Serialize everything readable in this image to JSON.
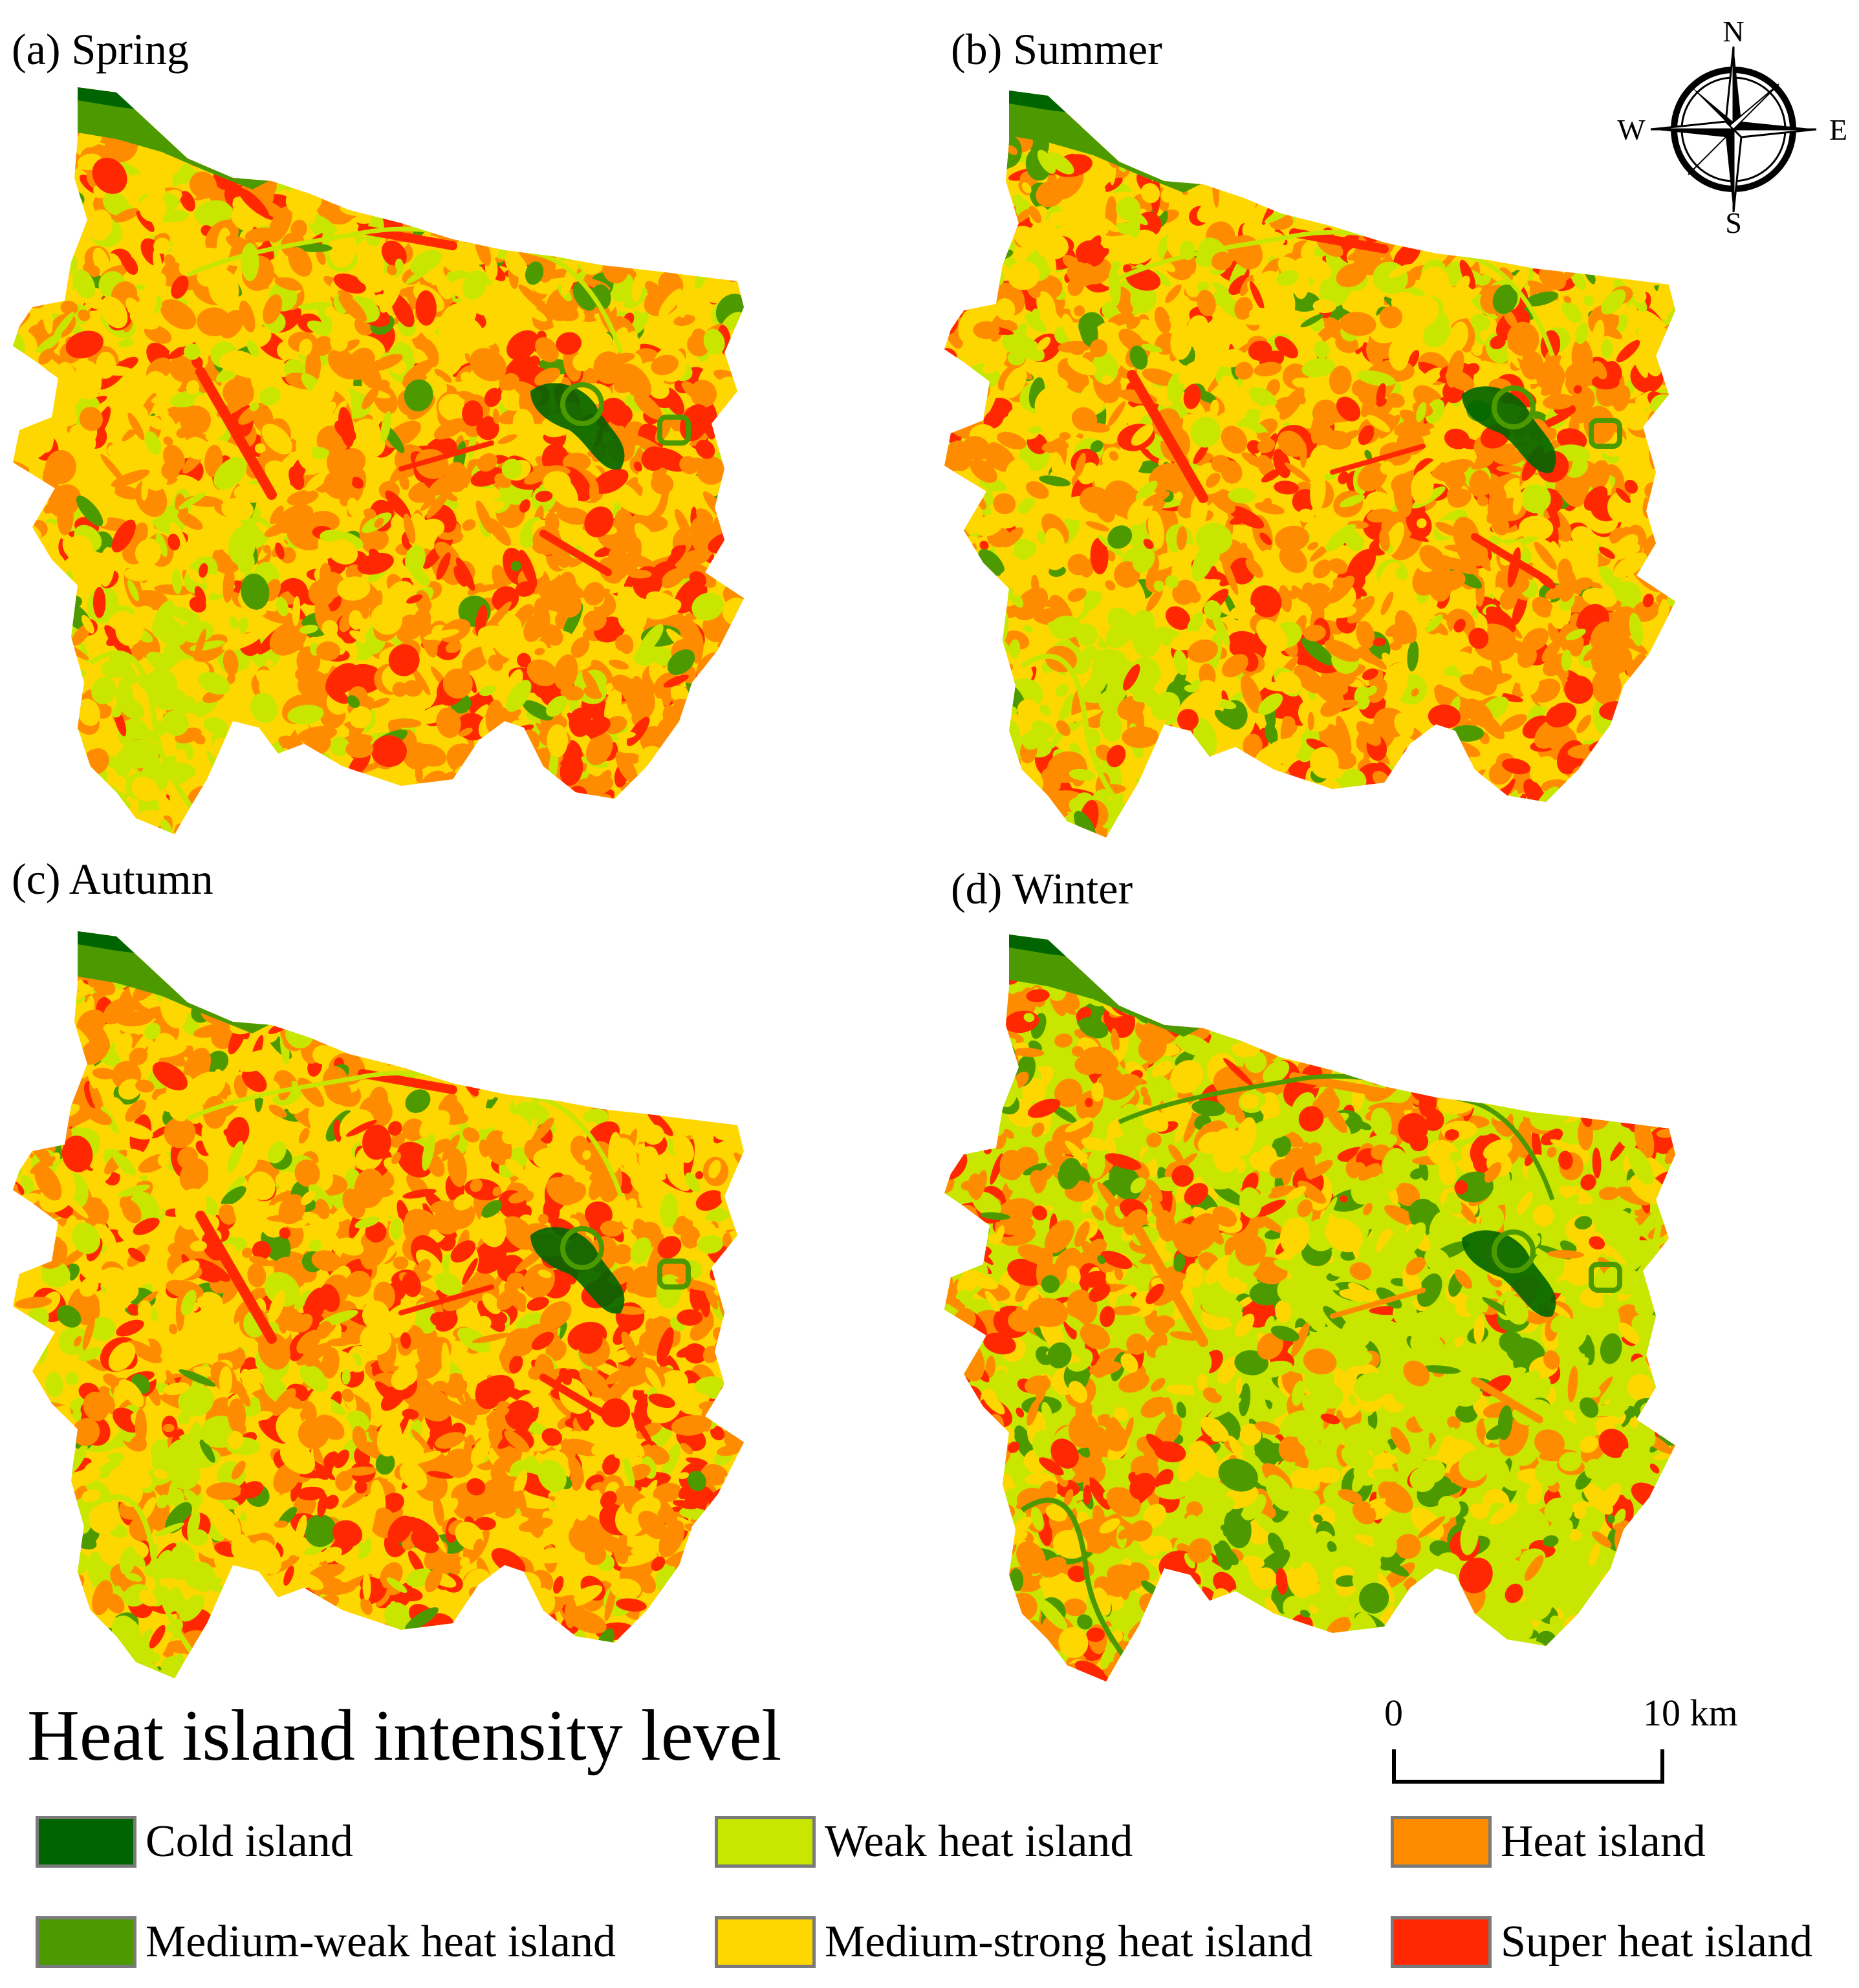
{
  "panels": [
    {
      "id": "spring",
      "title": "(a) Spring"
    },
    {
      "id": "summer",
      "title": "(b) Summer"
    },
    {
      "id": "autumn",
      "title": "(c) Autumn"
    },
    {
      "id": "winter",
      "title": "(d) Winter"
    }
  ],
  "compass": {
    "n": "N",
    "s": "S",
    "e": "E",
    "w": "W"
  },
  "scale_bar": {
    "start_label": "0",
    "end_label": "10 km"
  },
  "legend": {
    "title": "Heat island intensity level",
    "items": [
      {
        "label": "Cold island",
        "color": "#006400"
      },
      {
        "label": "Weak heat island",
        "color": "#c8e600"
      },
      {
        "label": "Heat island",
        "color": "#ff8c00"
      },
      {
        "label": "Medium-weak heat island",
        "color": "#4c9a00"
      },
      {
        "label": "Medium-strong heat island",
        "color": "#ffd700"
      },
      {
        "label": "Super heat island",
        "color": "#ff2800"
      }
    ]
  }
}
